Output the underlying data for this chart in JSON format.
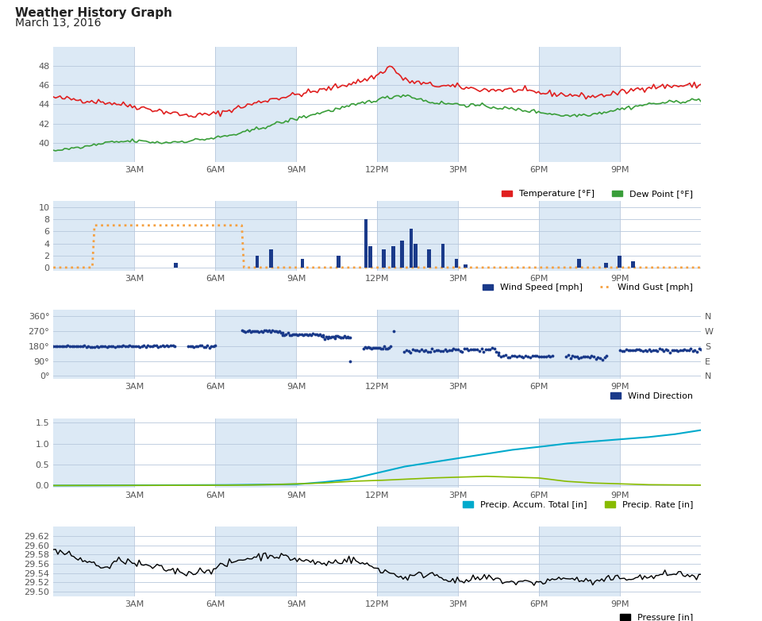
{
  "title": "Weather History Graph",
  "subtitle": "March 13, 2016",
  "bg_color": "#ffffff",
  "panel_bg_light": "#dce9f5",
  "panel_bg_white": "#ffffff",
  "x_labels": [
    "",
    "3AM",
    "6AM",
    "9AM",
    "12PM",
    "3PM",
    "6PM",
    "9PM",
    ""
  ],
  "temp_color": "#e02020",
  "dew_color": "#3a9e3a",
  "wind_speed_color": "#1a3a8a",
  "wind_gust_color": "#f5a040",
  "wind_dir_color": "#1a3a8a",
  "precip_accum_color": "#00aacc",
  "precip_rate_color": "#88bb00",
  "pressure_color": "#000000",
  "temp_ylim": [
    38,
    50
  ],
  "temp_yticks": [
    40,
    42,
    44,
    46,
    48
  ],
  "wind_yticks": [
    0,
    2,
    4,
    6,
    8,
    10
  ],
  "wind_ylim": [
    -0.5,
    11
  ],
  "dir_ylim": [
    -20,
    400
  ],
  "dir_yticks": [
    0,
    90,
    180,
    270,
    360
  ],
  "precip_ylim": [
    -0.05,
    1.6
  ],
  "precip_yticks": [
    0.0,
    0.5,
    1.0,
    1.5
  ],
  "pressure_ylim": [
    29.49,
    29.64
  ],
  "pressure_yticks": [
    29.5,
    29.52,
    29.54,
    29.56,
    29.58,
    29.6,
    29.62
  ]
}
